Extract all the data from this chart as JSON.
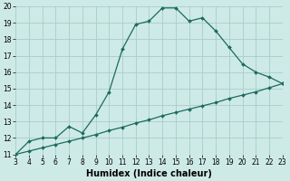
{
  "xlabel": "Humidex (Indice chaleur)",
  "background_color": "#ceeae6",
  "grid_color": "#a8cdc9",
  "line_color": "#1a6b5e",
  "xlim": [
    3,
    23
  ],
  "ylim": [
    11,
    20
  ],
  "xticks": [
    3,
    4,
    5,
    6,
    7,
    8,
    9,
    10,
    11,
    12,
    13,
    14,
    15,
    16,
    17,
    18,
    19,
    20,
    21,
    22,
    23
  ],
  "yticks": [
    11,
    12,
    13,
    14,
    15,
    16,
    17,
    18,
    19,
    20
  ],
  "curve1_x": [
    3,
    4,
    5,
    6,
    7,
    8,
    9,
    10,
    11,
    12,
    13,
    14,
    15,
    16,
    17,
    18,
    19,
    20,
    21,
    22,
    23
  ],
  "curve1_y": [
    11.0,
    11.8,
    12.0,
    12.0,
    12.7,
    12.3,
    13.4,
    14.8,
    17.4,
    18.9,
    19.1,
    19.9,
    19.9,
    19.1,
    19.3,
    18.5,
    17.5,
    16.5,
    16.0,
    15.7,
    15.3
  ],
  "curve2_x": [
    3,
    4,
    5,
    6,
    7,
    8,
    9,
    10,
    11,
    12,
    13,
    14,
    15,
    16,
    17,
    18,
    19,
    20,
    21,
    22,
    23
  ],
  "curve2_y": [
    11.0,
    11.2,
    11.4,
    11.6,
    11.8,
    12.0,
    12.2,
    12.45,
    12.65,
    12.9,
    13.1,
    13.35,
    13.55,
    13.75,
    13.95,
    14.15,
    14.4,
    14.6,
    14.8,
    15.05,
    15.3
  ],
  "markersize": 2.0,
  "linewidth": 0.9,
  "tick_fontsize": 5.5,
  "xlabel_fontsize": 7.0
}
